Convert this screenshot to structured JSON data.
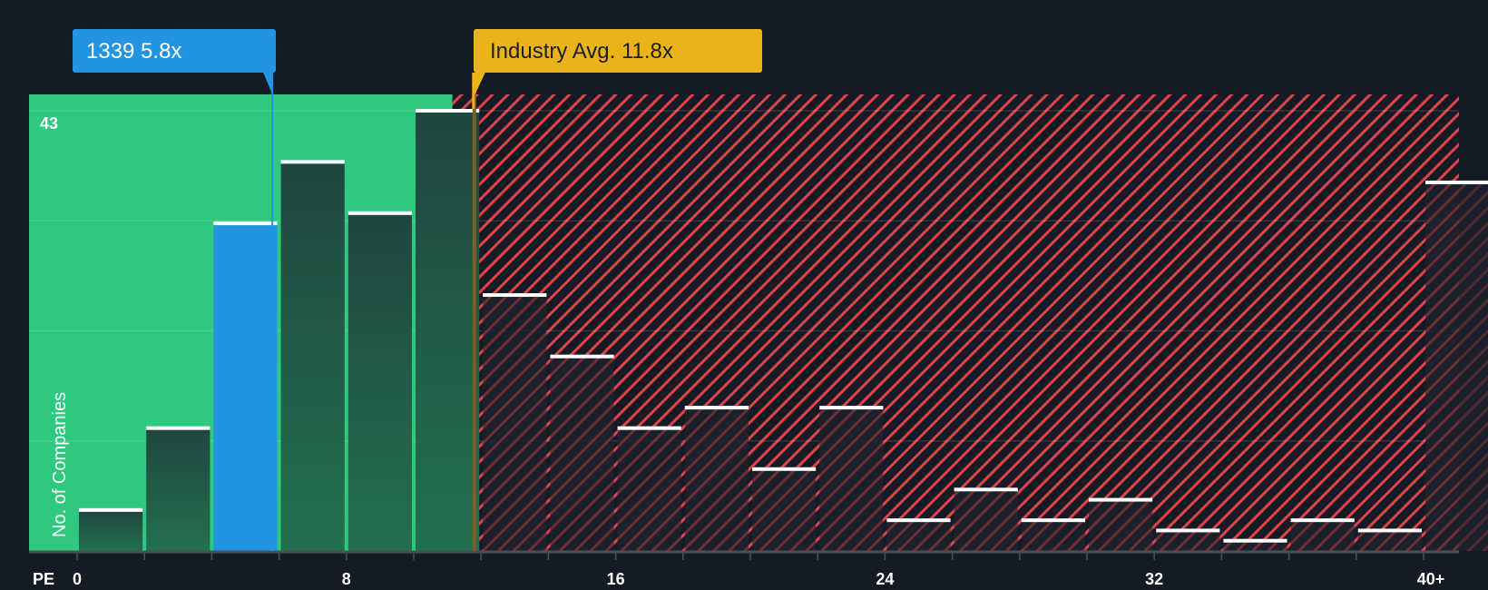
{
  "chart_data": {
    "type": "bar",
    "title": "",
    "xlabel": "PE",
    "ylabel": "No. of Companies",
    "ylim": [
      0,
      43
    ],
    "y_top_label": "43",
    "x_tick_labels": [
      "0",
      "8",
      "16",
      "24",
      "32",
      "40+"
    ],
    "bin_width": 2,
    "categories": [
      "0-2",
      "2-4",
      "4-6",
      "6-8",
      "8-10",
      "10-12",
      "12-14",
      "14-16",
      "16-18",
      "18-20",
      "20-22",
      "22-24",
      "24-26",
      "26-28",
      "28-30",
      "30-32",
      "32-34",
      "34-36",
      "36-38",
      "38-40",
      "40+"
    ],
    "values": [
      4,
      12,
      32,
      38,
      33,
      43,
      25,
      19,
      12,
      14,
      8,
      14,
      3,
      6,
      3,
      5,
      2,
      1,
      3,
      2,
      36
    ],
    "highlight_bin_index": 2,
    "company": {
      "label": "1339 5.8x",
      "ticker": "1339",
      "pe": 5.8
    },
    "industry_avg": {
      "label": "Industry Avg. 11.8x",
      "pe": 11.8
    },
    "grid": true,
    "legend": "none"
  },
  "colors": {
    "background": "#151b24",
    "undervalued_zone": "#2ec97f",
    "overvalued_hatch": "#e0434a",
    "company_bar": "#2394df",
    "industry_marker": "#ebb31a",
    "bar_dark": "#214a40",
    "bar_top": "#ffffff"
  },
  "labels": {
    "company_callout": "1339 5.8x",
    "industry_callout": "Industry Avg. 11.8x",
    "y_axis": "No. of Companies",
    "y_max": "43",
    "x_axis": "PE"
  }
}
